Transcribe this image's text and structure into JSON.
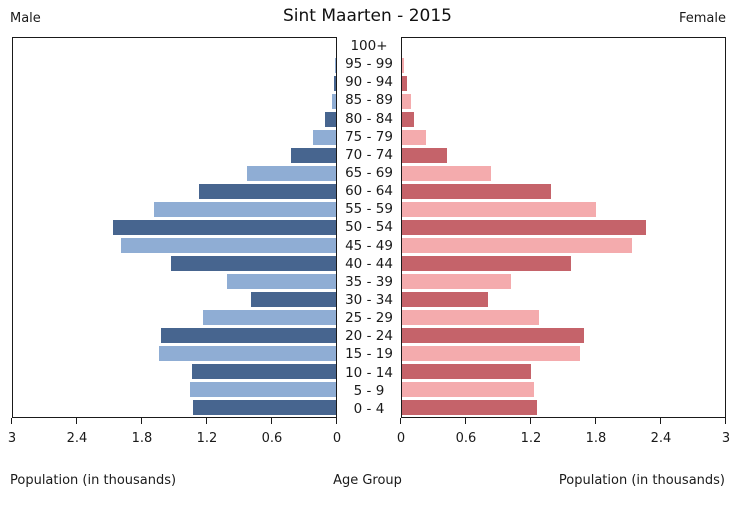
{
  "header": {
    "male_label": "Male",
    "title": "Sint Maarten - 2015",
    "female_label": "Female"
  },
  "footer": {
    "left_axis_label": "Population (in thousands)",
    "center_label": "Age Group",
    "right_axis_label": "Population (in thousands)"
  },
  "colors": {
    "male_dark": "#47658f",
    "male_light": "#8fadd4",
    "female_dark": "#c5636a",
    "female_light": "#f4abad",
    "axis": "#1a1a1a"
  },
  "chart_data": {
    "type": "bar",
    "subtype": "population-pyramid",
    "title": "Sint Maarten - 2015",
    "xlabel": "Population (in thousands)",
    "ylabel": "Age Group",
    "xlim": [
      0,
      3
    ],
    "grid": false,
    "x_ticks_male": [
      "3",
      "2.4",
      "1.8",
      "1.2",
      "0.6",
      "0"
    ],
    "x_ticks_female": [
      "0",
      "0.6",
      "1.2",
      "1.8",
      "2.4",
      "3"
    ],
    "categories": [
      "100+",
      "95 - 99",
      "90 - 94",
      "85 - 89",
      "80 - 84",
      "75 - 79",
      "70 - 74",
      "65 - 69",
      "60 - 64",
      "55 - 59",
      "50 - 54",
      "45 - 49",
      "40 - 44",
      "35 - 39",
      "30 - 34",
      "25 - 29",
      "20 - 24",
      "15 - 19",
      "10 - 14",
      "5 - 9",
      "0 - 4"
    ],
    "series": [
      {
        "name": "Male",
        "values": [
          0.0,
          0.01,
          0.02,
          0.04,
          0.1,
          0.21,
          0.42,
          0.83,
          1.27,
          1.69,
          2.07,
          2.0,
          1.53,
          1.01,
          0.79,
          1.24,
          1.63,
          1.64,
          1.34,
          1.36,
          1.33
        ]
      },
      {
        "name": "Female",
        "values": [
          0.0,
          0.02,
          0.05,
          0.08,
          0.11,
          0.22,
          0.42,
          0.83,
          1.38,
          1.8,
          2.27,
          2.14,
          1.57,
          1.01,
          0.8,
          1.27,
          1.69,
          1.65,
          1.2,
          1.23,
          1.25
        ]
      }
    ]
  }
}
